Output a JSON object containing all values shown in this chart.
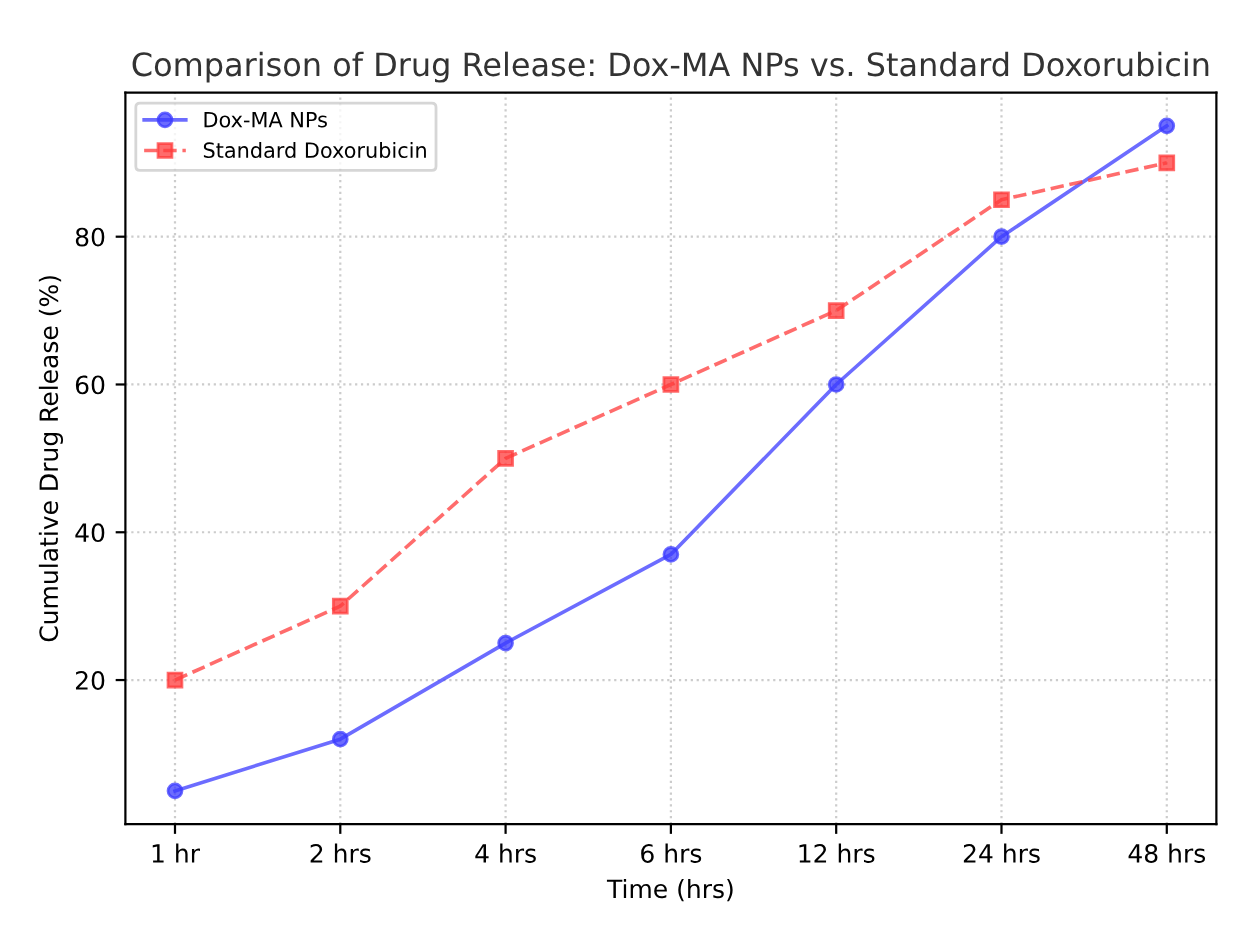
{
  "chart_data": {
    "type": "line",
    "title": "Comparison of Drug Release: Dox-MA NPs vs. Standard Doxorubicin",
    "xlabel": "Time (hrs)",
    "ylabel": "Cumulative Drug Release (%)",
    "categories": [
      "1 hr",
      "2 hrs",
      "4 hrs",
      "6 hrs",
      "12 hrs",
      "24 hrs",
      "48 hrs"
    ],
    "series": [
      {
        "name": "Dox-MA NPs",
        "color": "#3b3bff",
        "marker": "circle",
        "line_style": "solid",
        "values": [
          5,
          12,
          25,
          37,
          60,
          80,
          95
        ]
      },
      {
        "name": "Standard Doxorubicin",
        "color": "#ff3b3b",
        "marker": "square",
        "line_style": "dashed",
        "values": [
          20,
          30,
          50,
          60,
          70,
          85,
          90
        ]
      }
    ],
    "ylim": [
      0.5,
      99.5
    ],
    "yticks": [
      20,
      40,
      60,
      80
    ],
    "grid": true,
    "legend": "top left"
  }
}
